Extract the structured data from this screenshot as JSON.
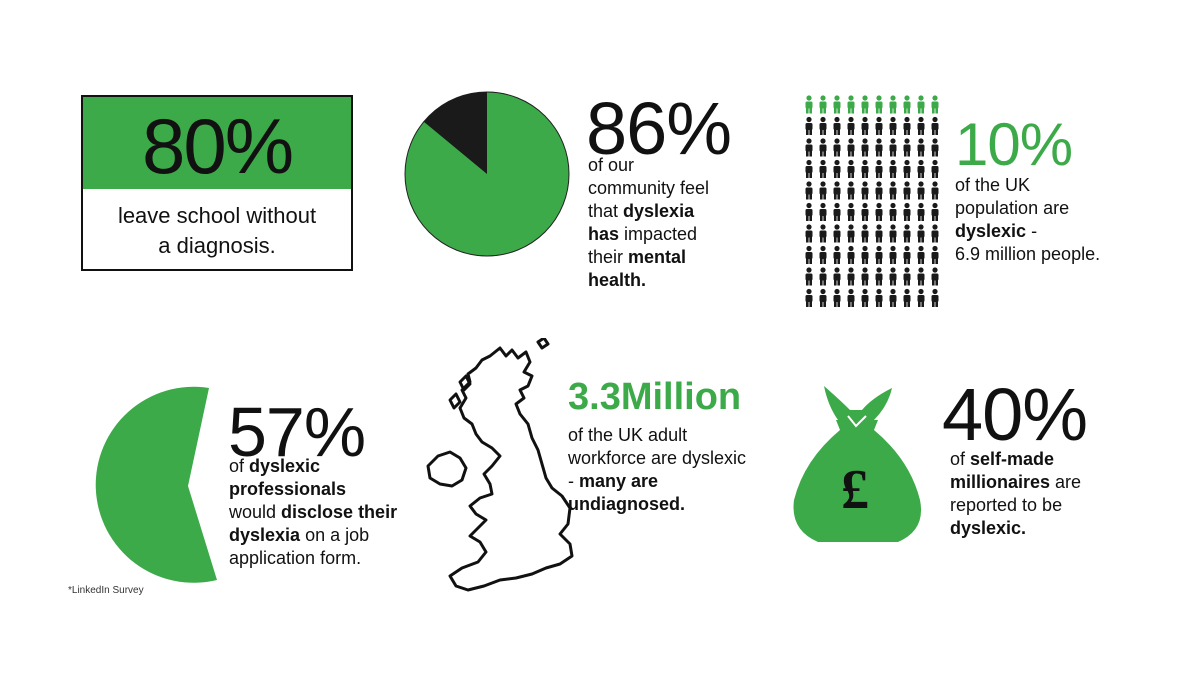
{
  "stats": {
    "s80": {
      "value": "80%",
      "text": "leave school without a diagnosis.",
      "line1": "leave school without",
      "line2": "a diagnosis."
    },
    "s86": {
      "value": "86%",
      "t1": "of our",
      "t2": "community feel",
      "t3a": "that ",
      "t3b": "dyslexia",
      "t4a": "has",
      "t4b": " impacted",
      "t5a": "their ",
      "t5b": "mental",
      "t6": "health.",
      "pie_fraction_green": 0.86
    },
    "s10": {
      "value": "10%",
      "t1": "of the UK",
      "t2": "population are",
      "t3": "dyslexic",
      "t3b": " -",
      "t4": "6.9 million people.",
      "icon_rows": 10,
      "icon_cols": 10,
      "green_rows": 1
    },
    "s57": {
      "value": "57%",
      "t1a": "of ",
      "t1b": "dyslexic",
      "t2": "professionals",
      "t3a": "would ",
      "t3b": "disclose their",
      "t4a": "dyslexia",
      "t4b": " on a job",
      "t5": "application form.",
      "pie_fraction_green": 0.57
    },
    "s33": {
      "value": "3.3Million",
      "t1": "of the UK adult",
      "t2": "workforce are dyslexic",
      "t3a": "- ",
      "t3b": "many are",
      "t4": "undiagnosed."
    },
    "s40": {
      "value": "40%",
      "t1a": "of ",
      "t1b": "self-made",
      "t2a": "millionaires",
      "t2b": " are",
      "t3": "reported to be",
      "t4": "dyslexic.",
      "bag_symbol": "£"
    }
  },
  "footnote": "*LinkedIn Survey",
  "colors": {
    "green": "#3daa4a",
    "dark": "#1a1a1a"
  },
  "icons": [
    "pie-chart-icon",
    "person-icon",
    "uk-map-icon",
    "money-bag-icon"
  ]
}
